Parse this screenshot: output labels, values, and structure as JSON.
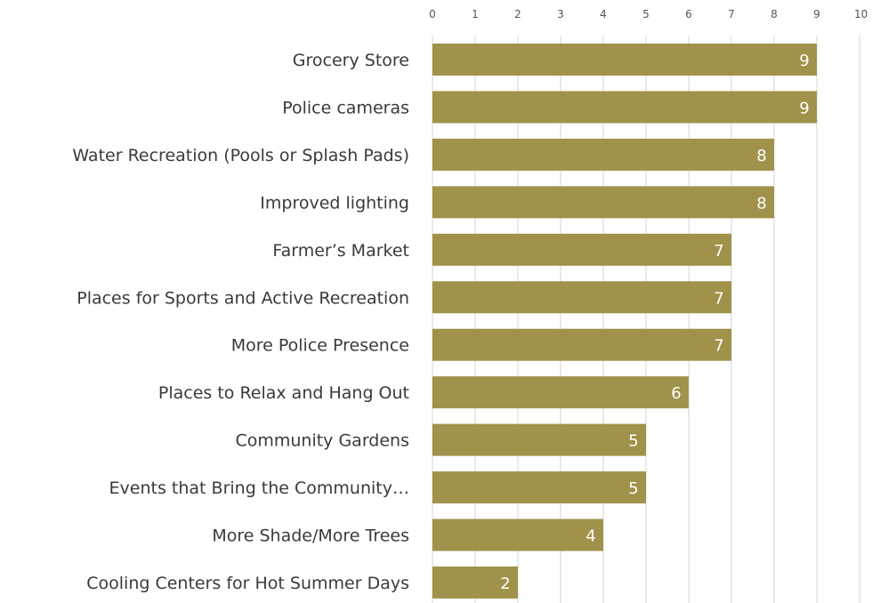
{
  "chart_data": {
    "type": "bar",
    "orientation": "horizontal",
    "categories": [
      "Grocery Store",
      "Police cameras",
      "Water Recreation (Pools or Splash Pads)",
      "Improved lighting",
      "Farmer’s Market",
      "Places for Sports and Active Recreation",
      "More Police Presence",
      "Places to Relax and Hang Out",
      "Community Gardens",
      "Events that Bring the Community…",
      "More Shade/More Trees",
      "Cooling Centers for Hot Summer Days"
    ],
    "values": [
      9,
      9,
      8,
      8,
      7,
      7,
      7,
      6,
      5,
      5,
      4,
      2
    ],
    "xlim": [
      0,
      10
    ],
    "x_ticks": [
      "0",
      "1",
      "2",
      "3",
      "4",
      "5",
      "6",
      "7",
      "8",
      "9",
      "10"
    ],
    "x_axis_position": "top",
    "grid": true,
    "legend": "none",
    "bar_color": "#a0924a",
    "label_color": "#ffffff"
  }
}
